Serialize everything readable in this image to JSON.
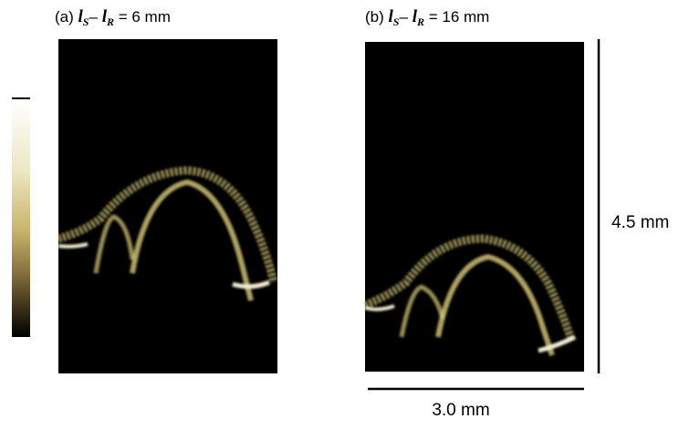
{
  "panels": [
    {
      "label": "(a)",
      "var1": "l",
      "sub1": "S",
      "minus": "–",
      "var2": "l",
      "sub2": "R",
      "value_text": "= 6 mm"
    },
    {
      "label": "(b)",
      "var1": "l",
      "sub1": "S",
      "minus": "–",
      "var2": "l",
      "sub2": "R",
      "value_text": "= 16 mm"
    }
  ],
  "scale_bars": {
    "vertical": "4.5 mm",
    "horizontal": "3.0 mm"
  }
}
